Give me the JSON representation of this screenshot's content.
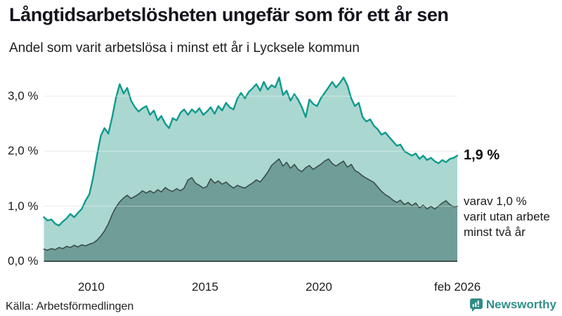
{
  "header": {
    "title": "Långtidsarbetslösheten ungefär som för ett år sen",
    "subtitle": "Andel som varit arbetslösa i minst ett år i Lycksele kommun"
  },
  "annotations": {
    "total_label": "1,9 %",
    "subset_label_lines": [
      "varav 1,0 %",
      "varit utan arbete",
      "minst två år"
    ]
  },
  "footer": {
    "source": "Källa: Arbetsförmedlingen",
    "brand": "Newsworthy"
  },
  "colors": {
    "line_total": "#0e9a8c",
    "fill_total": "#abd7d1",
    "line_subset": "#3c4e4a",
    "fill_subset": "#6f9d97",
    "gridline": "#dcdcdc",
    "gridline_overlay": "rgba(255,255,255,0.42)",
    "baseline": "#3f514d",
    "brand_teal": "#2e8c85"
  },
  "chart_data": {
    "type": "area",
    "title": "Långtidsarbetslösheten ungefär som för ett år sen",
    "xlabel": "",
    "ylabel": "Andel som varit arbetslösa i minst ett år (%)",
    "grid": true,
    "legend_position": "right-annotations",
    "ylim": [
      0,
      3.37
    ],
    "y_ticks": [
      {
        "value": 0,
        "label": "0,0 %"
      },
      {
        "value": 1,
        "label": "1,0 %"
      },
      {
        "value": 2,
        "label": "2,0 %"
      },
      {
        "value": 3,
        "label": "3,0 %"
      }
    ],
    "x_ticks": [
      {
        "value": 2010,
        "label": "2010"
      },
      {
        "value": 2015,
        "label": "2015"
      },
      {
        "value": 2020,
        "label": "2020"
      },
      {
        "value": 2026.083,
        "label": "feb 2026"
      }
    ],
    "x": [
      2007.92,
      2008.08,
      2008.25,
      2008.42,
      2008.58,
      2008.75,
      2008.92,
      2009.08,
      2009.25,
      2009.42,
      2009.58,
      2009.75,
      2009.92,
      2010.08,
      2010.25,
      2010.42,
      2010.58,
      2010.75,
      2010.92,
      2011.08,
      2011.25,
      2011.42,
      2011.58,
      2011.75,
      2011.92,
      2012.08,
      2012.25,
      2012.42,
      2012.58,
      2012.75,
      2012.92,
      2013.08,
      2013.25,
      2013.42,
      2013.58,
      2013.75,
      2013.92,
      2014.08,
      2014.25,
      2014.42,
      2014.58,
      2014.75,
      2014.92,
      2015.08,
      2015.25,
      2015.42,
      2015.58,
      2015.75,
      2015.92,
      2016.08,
      2016.25,
      2016.42,
      2016.58,
      2016.75,
      2016.92,
      2017.08,
      2017.25,
      2017.42,
      2017.58,
      2017.75,
      2017.92,
      2018.08,
      2018.25,
      2018.42,
      2018.58,
      2018.75,
      2018.92,
      2019.08,
      2019.25,
      2019.42,
      2019.58,
      2019.75,
      2019.92,
      2020.08,
      2020.25,
      2020.42,
      2020.58,
      2020.75,
      2020.92,
      2021.08,
      2021.25,
      2021.42,
      2021.58,
      2021.75,
      2021.92,
      2022.08,
      2022.25,
      2022.42,
      2022.58,
      2022.75,
      2022.92,
      2023.08,
      2023.25,
      2023.42,
      2023.58,
      2023.75,
      2023.92,
      2024.08,
      2024.25,
      2024.42,
      2024.58,
      2024.75,
      2024.92,
      2025.08,
      2025.25,
      2025.42,
      2025.58,
      2025.75,
      2025.92,
      2026.08
    ],
    "series": [
      {
        "name": "Andel som varit arbetslösa i minst ett år",
        "end_label": "1,9 %",
        "line_color": "#0e9a8c",
        "fill_color": "#abd7d1",
        "line_width": 2.4,
        "values": [
          0.8,
          0.74,
          0.76,
          0.68,
          0.65,
          0.72,
          0.78,
          0.86,
          0.8,
          0.88,
          0.95,
          1.1,
          1.22,
          1.52,
          1.92,
          2.28,
          2.42,
          2.32,
          2.62,
          2.96,
          3.22,
          3.05,
          3.15,
          2.92,
          2.8,
          2.72,
          2.78,
          2.82,
          2.66,
          2.74,
          2.56,
          2.64,
          2.5,
          2.42,
          2.6,
          2.56,
          2.7,
          2.76,
          2.66,
          2.76,
          2.7,
          2.78,
          2.66,
          2.72,
          2.8,
          2.68,
          2.82,
          2.74,
          2.88,
          2.8,
          2.76,
          2.96,
          3.06,
          2.96,
          3.08,
          3.14,
          3.22,
          3.1,
          3.26,
          3.12,
          3.2,
          3.16,
          3.34,
          3.02,
          3.1,
          2.92,
          3.04,
          2.94,
          2.8,
          2.62,
          2.94,
          2.86,
          2.82,
          2.96,
          3.06,
          3.16,
          3.26,
          3.16,
          3.24,
          3.34,
          3.2,
          2.96,
          2.82,
          2.88,
          2.62,
          2.54,
          2.58,
          2.46,
          2.4,
          2.3,
          2.34,
          2.26,
          2.18,
          2.1,
          2.12,
          2.0,
          1.96,
          1.92,
          1.96,
          1.86,
          1.92,
          1.84,
          1.88,
          1.82,
          1.78,
          1.84,
          1.8,
          1.86,
          1.88,
          1.92
        ]
      },
      {
        "name": "varav varit utan arbete minst två år",
        "end_label": "varav 1,0 % varit utan arbete minst två år",
        "line_color": "#3c4e4a",
        "fill_color": "#6f9d97",
        "line_width": 1.6,
        "values": [
          0.22,
          0.2,
          0.23,
          0.21,
          0.25,
          0.23,
          0.27,
          0.25,
          0.29,
          0.26,
          0.3,
          0.28,
          0.31,
          0.33,
          0.38,
          0.46,
          0.55,
          0.68,
          0.85,
          0.98,
          1.08,
          1.15,
          1.2,
          1.14,
          1.18,
          1.22,
          1.28,
          1.24,
          1.28,
          1.24,
          1.3,
          1.26,
          1.34,
          1.29,
          1.27,
          1.32,
          1.28,
          1.33,
          1.48,
          1.52,
          1.42,
          1.38,
          1.33,
          1.36,
          1.5,
          1.42,
          1.46,
          1.4,
          1.44,
          1.38,
          1.33,
          1.38,
          1.35,
          1.33,
          1.38,
          1.42,
          1.48,
          1.44,
          1.52,
          1.62,
          1.74,
          1.8,
          1.86,
          1.73,
          1.8,
          1.69,
          1.76,
          1.67,
          1.63,
          1.7,
          1.74,
          1.67,
          1.72,
          1.76,
          1.82,
          1.86,
          1.78,
          1.73,
          1.78,
          1.82,
          1.71,
          1.76,
          1.65,
          1.61,
          1.55,
          1.51,
          1.47,
          1.43,
          1.35,
          1.27,
          1.21,
          1.17,
          1.11,
          1.07,
          1.11,
          1.03,
          1.07,
          1.01,
          1.06,
          0.97,
          1.02,
          0.95,
          1.0,
          0.95,
          1.0,
          1.06,
          1.1,
          1.03,
          0.99,
          1.0
        ]
      }
    ]
  }
}
